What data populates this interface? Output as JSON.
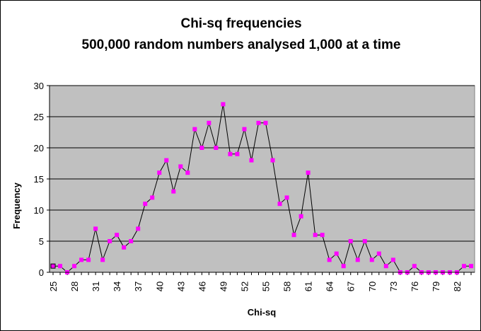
{
  "chart_data": {
    "type": "line",
    "title_lines": [
      "Chi-sq frequencies",
      "500,000 random numbers analysed 1,000 at a time"
    ],
    "xlabel": "Chi-sq",
    "ylabel": "Frequency",
    "ylim": [
      0,
      30
    ],
    "yticks": [
      0,
      5,
      10,
      15,
      20,
      25,
      30
    ],
    "x": [
      25,
      26,
      27,
      28,
      29,
      30,
      31,
      32,
      33,
      34,
      35,
      36,
      37,
      38,
      39,
      40,
      41,
      42,
      43,
      44,
      45,
      46,
      47,
      48,
      49,
      50,
      51,
      52,
      53,
      54,
      55,
      56,
      57,
      58,
      59,
      60,
      61,
      62,
      63,
      64,
      65,
      66,
      67,
      68,
      69,
      70,
      71,
      72,
      73,
      74,
      75,
      76,
      77,
      78,
      79,
      80,
      81,
      82,
      83,
      84
    ],
    "xtick_labels": [
      "25",
      "28",
      "31",
      "34",
      "37",
      "40",
      "43",
      "46",
      "49",
      "52",
      "55",
      "58",
      "61",
      "64",
      "67",
      "70",
      "73",
      "76",
      "79",
      "82"
    ],
    "series": [
      {
        "values": [
          1,
          1,
          0,
          1,
          2,
          2,
          7,
          2,
          5,
          6,
          4,
          5,
          7,
          11,
          12,
          16,
          18,
          13,
          17,
          16,
          23,
          20,
          24,
          20,
          27,
          19,
          19,
          23,
          18,
          24,
          24,
          18,
          11,
          12,
          6,
          9,
          16,
          6,
          6,
          2,
          3,
          1,
          5,
          2,
          5,
          2,
          3,
          1,
          2,
          0,
          0,
          1,
          0,
          0,
          0,
          0,
          0,
          0,
          1,
          1
        ],
        "line_color": "#000000",
        "marker_color": "#ff00ff"
      }
    ],
    "plot_background": "#c0c0c0",
    "grid": "horizontal",
    "legend": "none"
  }
}
